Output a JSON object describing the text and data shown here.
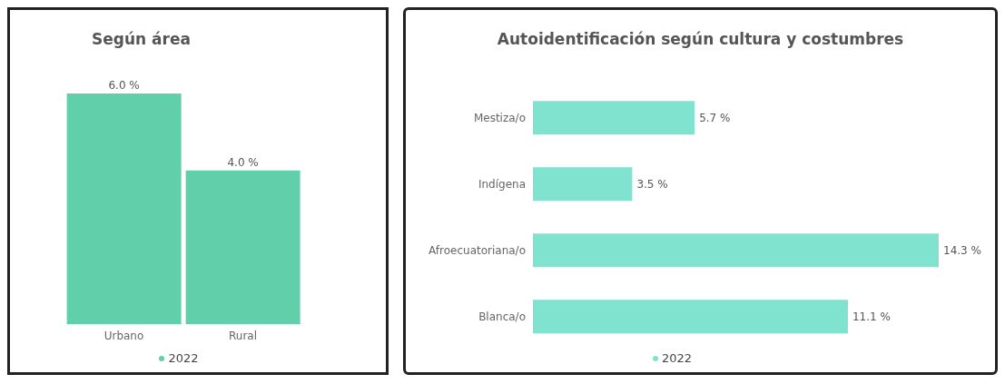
{
  "chart_data": [
    {
      "type": "bar",
      "title": "Según área",
      "categories": [
        "Urbano",
        "Rural"
      ],
      "series": [
        {
          "name": "2022",
          "color": "#62cfab",
          "values": [
            6.0,
            4.0
          ],
          "value_labels": [
            "6.0 %",
            "4.0 %"
          ]
        }
      ],
      "legend": "bottom"
    },
    {
      "type": "bar",
      "orientation": "horizontal",
      "title": "Autoidentificación según cultura y costumbres",
      "categories": [
        "Mestiza/o",
        "Indígena",
        "Afroecuatoriana/o",
        "Blanca/o"
      ],
      "series": [
        {
          "name": "2022",
          "color": "#7fe3cf",
          "values": [
            5.7,
            3.5,
            14.3,
            11.1
          ],
          "value_labels": [
            "5.7 %",
            "3.5 %",
            "14.3 %",
            "11.1 %"
          ]
        }
      ],
      "legend": "bottom"
    }
  ]
}
